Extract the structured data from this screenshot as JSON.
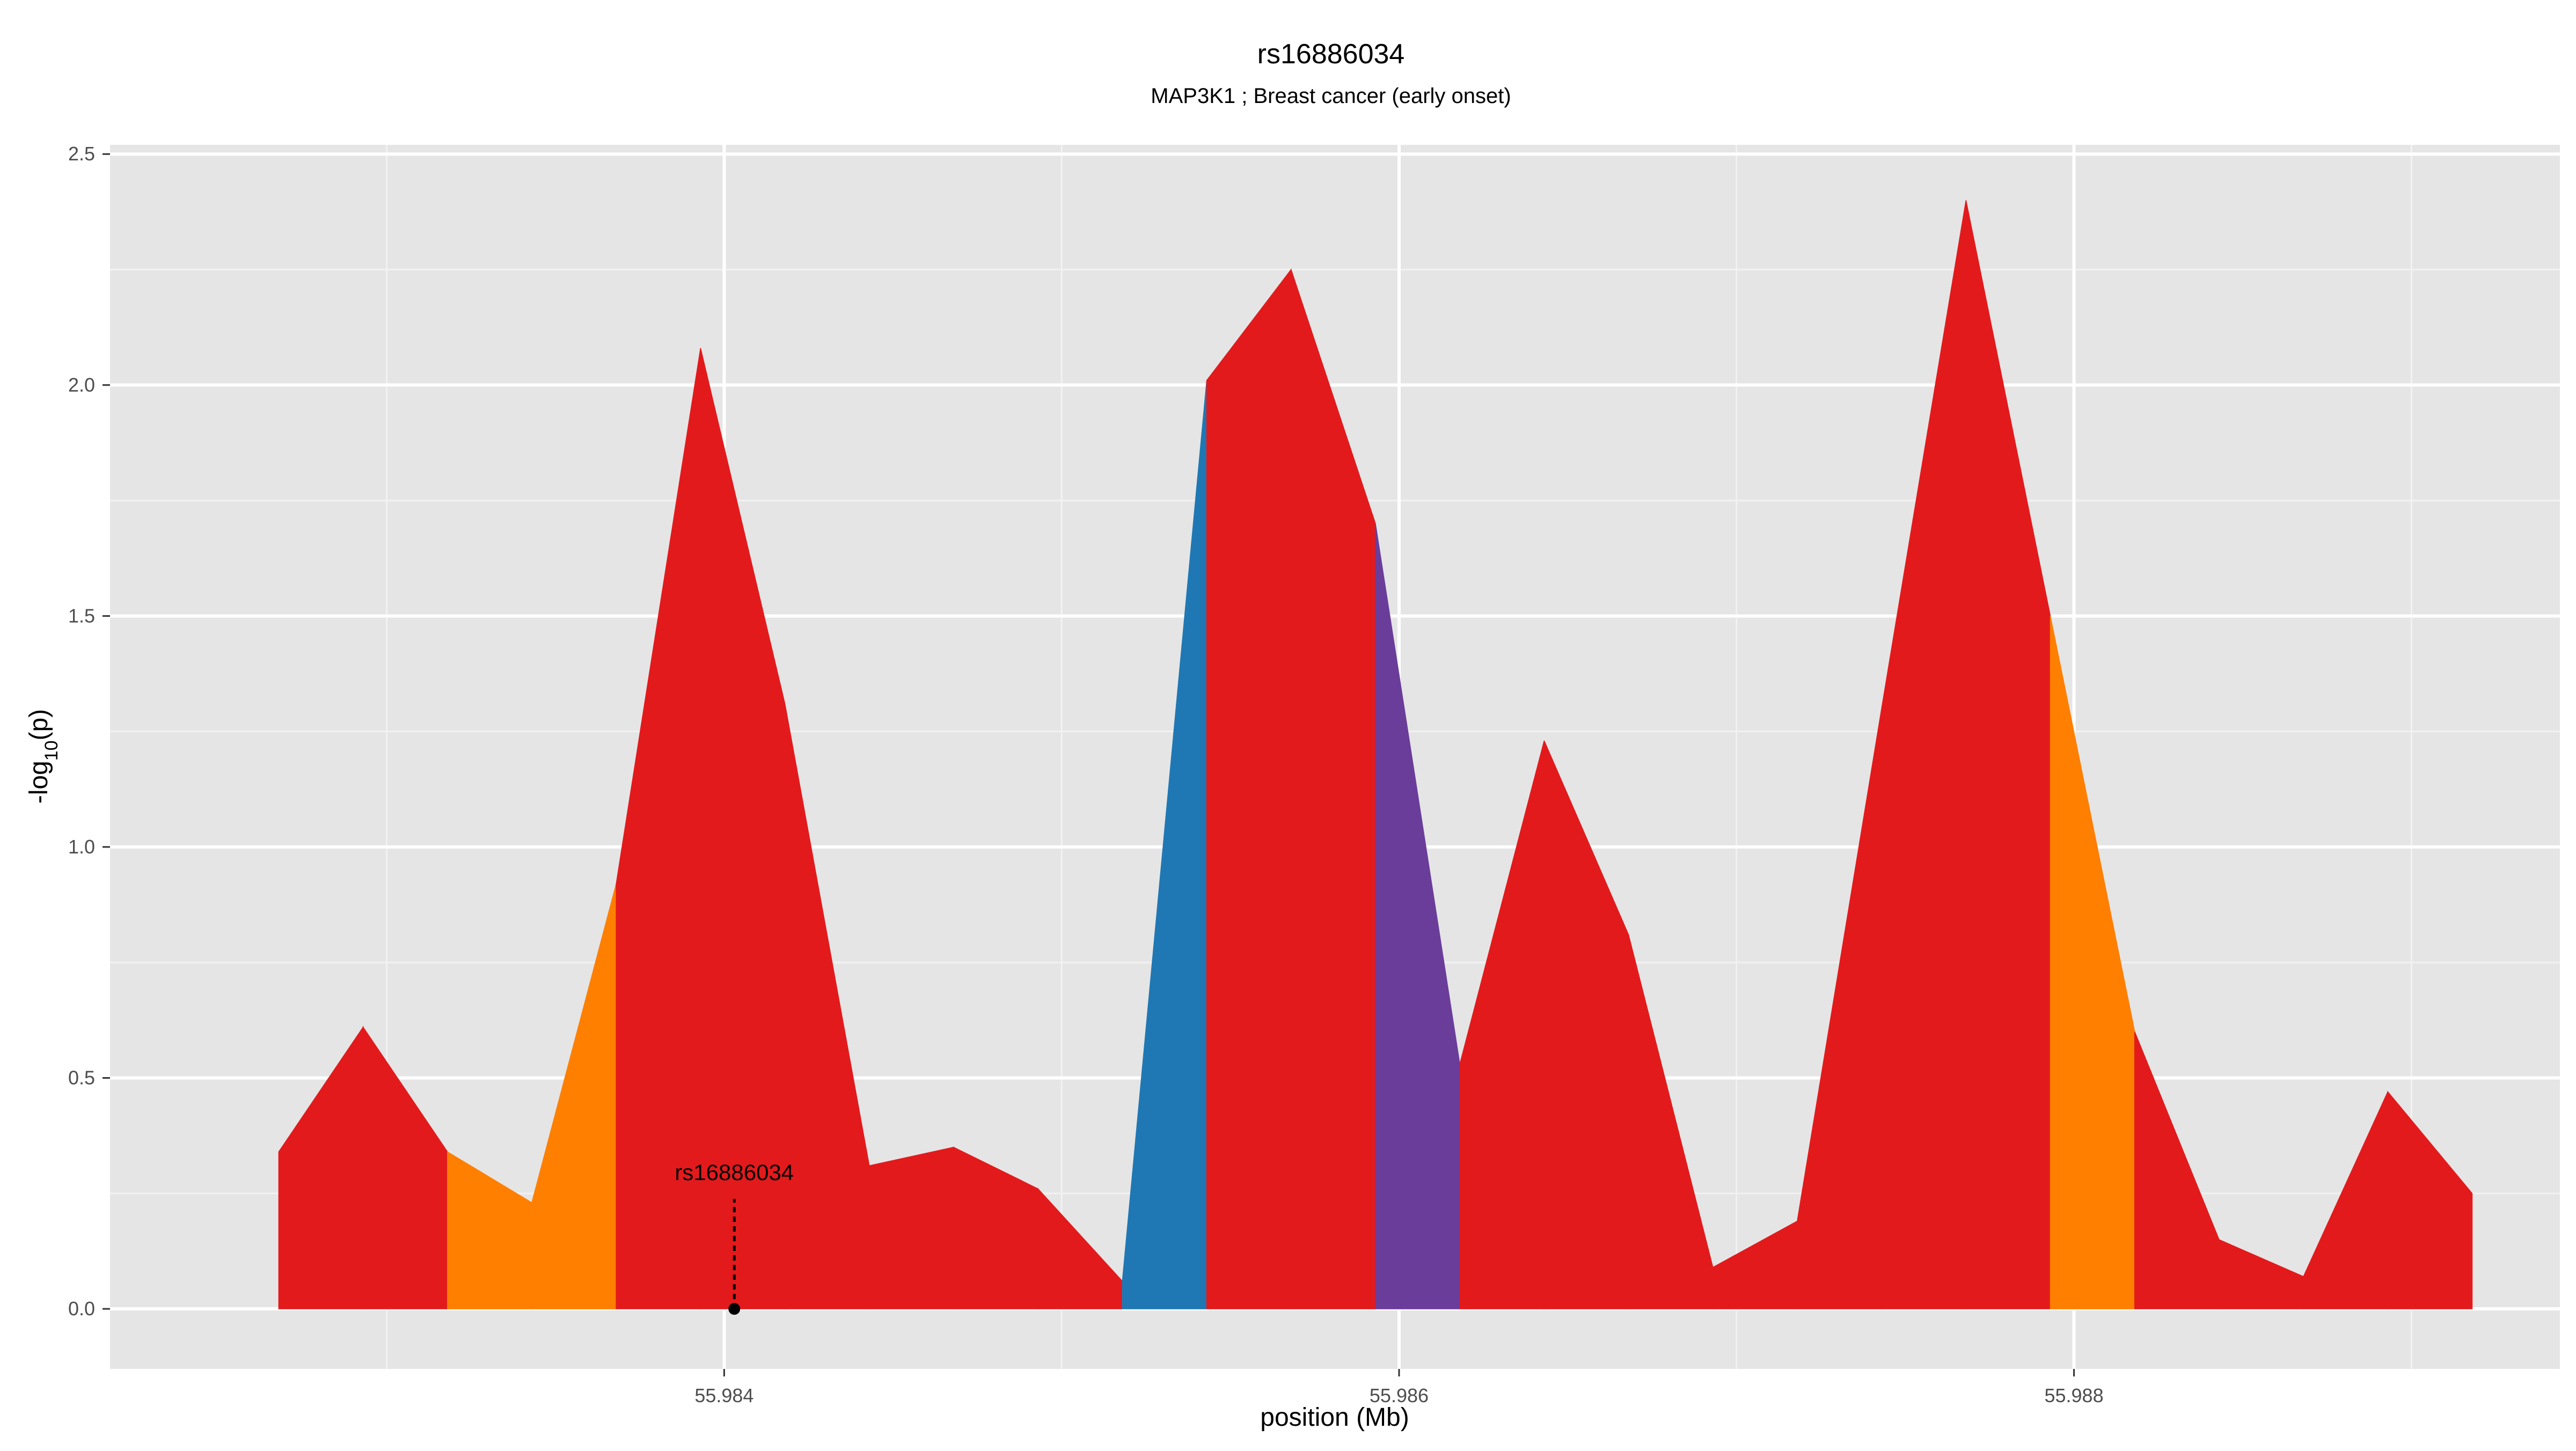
{
  "chart_data": {
    "type": "area",
    "title": "rs16886034",
    "subtitle": "MAP3K1 ; Breast cancer (early onset)",
    "xlabel": "position (Mb)",
    "ylabel": "-log10(p)",
    "ylabel_parts": {
      "prefix": "-log",
      "sub": "10",
      "suffix": "(p)"
    },
    "xlim": [
      55.98235,
      55.98918
    ],
    "ylim": [
      -0.13,
      2.52
    ],
    "x_ticks": [
      "55.984",
      "55.986",
      "55.988"
    ],
    "y_ticks": [
      "0.0",
      "0.5",
      "1.0",
      "1.5",
      "2.0",
      "2.5"
    ],
    "grid": true,
    "legend": "none",
    "colors": {
      "panel": "#e5e5e5",
      "grid_major": "#ffffff",
      "red": "#e31a1c",
      "orange": "#ff7f00",
      "blue": "#1f78b4",
      "purple": "#6a3d9a"
    },
    "points": [
      {
        "x": 55.98268,
        "y": 0.34
      },
      {
        "x": 55.98293,
        "y": 0.61
      },
      {
        "x": 55.98318,
        "y": 0.34
      },
      {
        "x": 55.98343,
        "y": 0.23
      },
      {
        "x": 55.98368,
        "y": 0.92
      },
      {
        "x": 55.98393,
        "y": 2.08
      },
      {
        "x": 55.98418,
        "y": 1.31
      },
      {
        "x": 55.98443,
        "y": 0.31
      },
      {
        "x": 55.98468,
        "y": 0.35
      },
      {
        "x": 55.98493,
        "y": 0.26
      },
      {
        "x": 55.98518,
        "y": 0.06
      },
      {
        "x": 55.98543,
        "y": 2.01
      },
      {
        "x": 55.98568,
        "y": 2.25
      },
      {
        "x": 55.98593,
        "y": 1.7
      },
      {
        "x": 55.98618,
        "y": 0.53
      },
      {
        "x": 55.98643,
        "y": 1.23
      },
      {
        "x": 55.98668,
        "y": 0.81
      },
      {
        "x": 55.98693,
        "y": 0.09
      },
      {
        "x": 55.98718,
        "y": 0.19
      },
      {
        "x": 55.98743,
        "y": 1.3
      },
      {
        "x": 55.98768,
        "y": 2.4
      },
      {
        "x": 55.98793,
        "y": 1.5
      },
      {
        "x": 55.98818,
        "y": 0.6
      },
      {
        "x": 55.98843,
        "y": 0.15
      },
      {
        "x": 55.98868,
        "y": 0.07
      },
      {
        "x": 55.98893,
        "y": 0.47
      },
      {
        "x": 55.98918,
        "y": 0.25
      }
    ],
    "segment_colors": [
      "red",
      "red",
      "orange",
      "orange",
      "red",
      "red",
      "red",
      "red",
      "red",
      "red",
      "blue",
      "red",
      "red",
      "purple",
      "red",
      "red",
      "red",
      "red",
      "red",
      "red",
      "red",
      "orange",
      "red",
      "red",
      "red",
      "red"
    ],
    "annotation": {
      "label": "rs16886034",
      "x": 55.98403,
      "y": 0.0
    }
  }
}
